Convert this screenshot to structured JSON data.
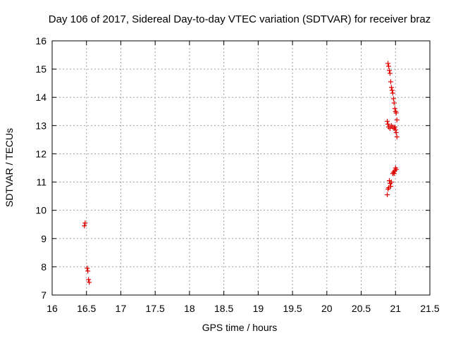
{
  "chart_data": {
    "type": "scatter",
    "title": "Day 106 of 2017, Sidereal Day-to-day VTEC variation (SDTVAR) for receiver braz",
    "xlabel": "GPS time / hours",
    "ylabel": "SDTVAR / TECUs",
    "xlim": [
      16,
      21.5
    ],
    "ylim": [
      7,
      16
    ],
    "xticks": [
      16,
      16.5,
      17,
      17.5,
      18,
      18.5,
      19,
      19.5,
      20,
      20.5,
      21,
      21.5
    ],
    "xtick_labels": [
      "16",
      "16.5",
      "17",
      "17.5",
      "18",
      "18.5",
      "19",
      "19.5",
      "20",
      "20.5",
      "21",
      "21.5"
    ],
    "yticks": [
      7,
      8,
      9,
      10,
      11,
      12,
      13,
      14,
      15,
      16
    ],
    "ytick_labels": [
      "7",
      "8",
      "9",
      "10",
      "11",
      "12",
      "13",
      "14",
      "15",
      "16"
    ],
    "grid": true,
    "marker": "+",
    "point_color": "#e00000",
    "series": [
      {
        "name": "SDTVAR",
        "x": [
          16.47,
          16.48,
          16.51,
          16.52,
          16.53,
          16.54,
          20.89,
          20.9,
          20.91,
          20.92,
          20.93,
          20.94,
          20.95,
          20.96,
          20.97,
          20.98,
          20.99,
          21.0,
          21.01,
          21.02,
          20.88,
          20.89,
          20.9,
          20.92,
          20.94,
          20.96,
          20.98,
          20.99,
          21.0,
          21.01,
          21.02,
          20.88,
          20.89,
          20.9,
          20.91,
          20.92,
          20.93,
          20.94,
          20.96,
          20.97,
          20.98,
          20.99,
          21.0,
          21.01
        ],
        "y": [
          9.45,
          9.55,
          7.95,
          7.85,
          7.55,
          7.45,
          15.2,
          15.1,
          14.95,
          14.85,
          14.55,
          14.35,
          14.25,
          14.15,
          13.95,
          13.8,
          13.6,
          13.5,
          13.45,
          13.2,
          13.15,
          13.05,
          12.95,
          12.9,
          13.0,
          12.95,
          12.9,
          12.95,
          12.85,
          12.75,
          12.6,
          10.55,
          10.75,
          10.8,
          11.05,
          10.95,
          10.85,
          11.0,
          11.3,
          11.35,
          11.3,
          11.4,
          11.5,
          11.45
        ]
      }
    ]
  }
}
